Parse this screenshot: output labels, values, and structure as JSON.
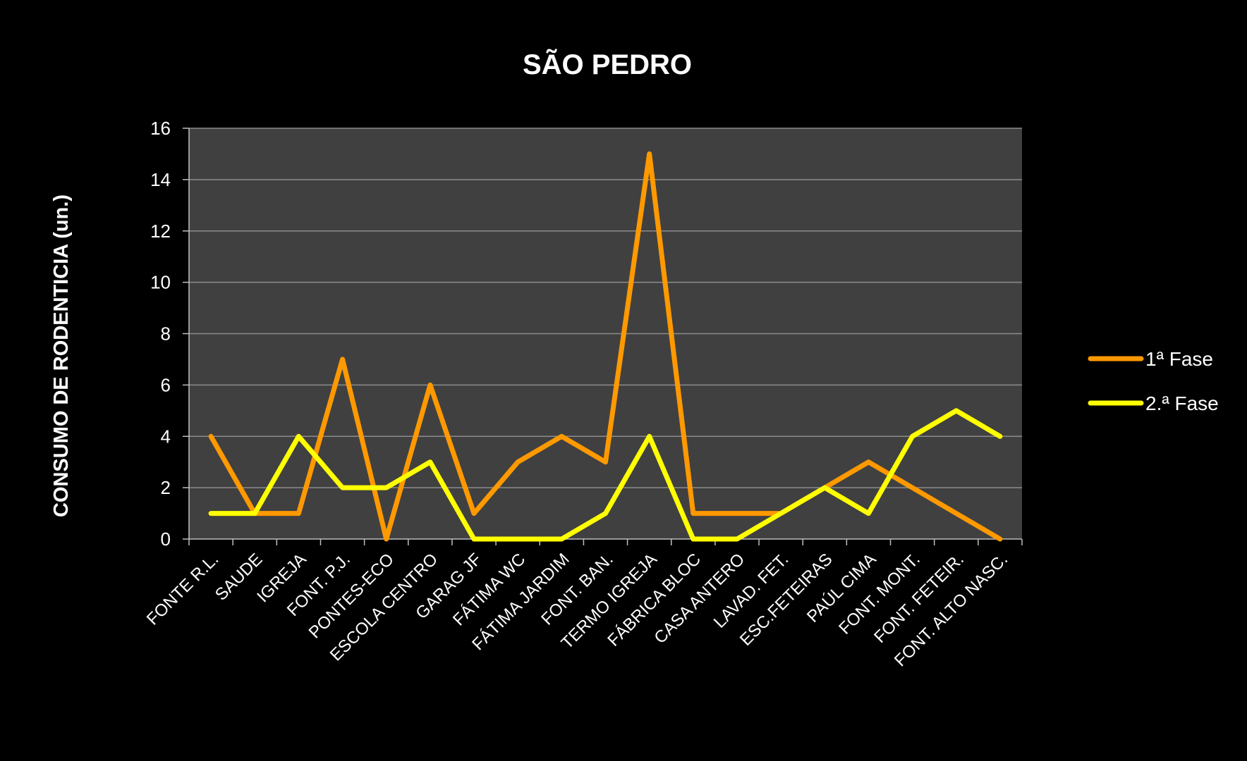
{
  "chart_data": {
    "type": "line",
    "title": "SÃO PEDRO",
    "xlabel": "",
    "ylabel": "CONSUMO  DE  RODENTICIA  (un.)",
    "ylim": [
      0,
      16
    ],
    "yticks": [
      0,
      2,
      4,
      6,
      8,
      10,
      12,
      14,
      16
    ],
    "grid": true,
    "legend_position": "right",
    "categories": [
      "FONTE R.L.",
      "SAUDE",
      "IGREJA",
      "FONT. P.J.",
      "PONTES-ECO",
      "ESCOLA CENTRO",
      "GARAG JF",
      "FÁTIMA WC",
      "FÁTIMA JARDIM",
      "FONT. BAN.",
      "TERMO IGREJA",
      "FÁBRICA BLOC",
      "CASA ANTERO",
      "LAVAD. FET.",
      "ESC.FETEIRAS",
      "PAÚL CIMA",
      "FONT. MONT.",
      "FONT. FETEIR.",
      "FONT. ALTO NASC."
    ],
    "series": [
      {
        "name": "1ª Fase",
        "color": "#FF9900",
        "values": [
          4,
          1,
          1,
          7,
          0,
          6,
          1,
          3,
          4,
          3,
          15,
          1,
          1,
          1,
          2,
          3,
          2,
          1,
          0
        ]
      },
      {
        "name": "2.ª Fase",
        "color": "#FFFF00",
        "values": [
          1,
          1,
          4,
          2,
          2,
          3,
          0,
          0,
          0,
          1,
          4,
          0,
          0,
          1,
          2,
          1,
          4,
          5,
          4
        ]
      }
    ],
    "colors": {
      "background": "#000000",
      "plot_area": "#404040",
      "gridline": "#8C8C8C",
      "axis": "#BFBFBF",
      "text": "#FFFFFF"
    }
  }
}
